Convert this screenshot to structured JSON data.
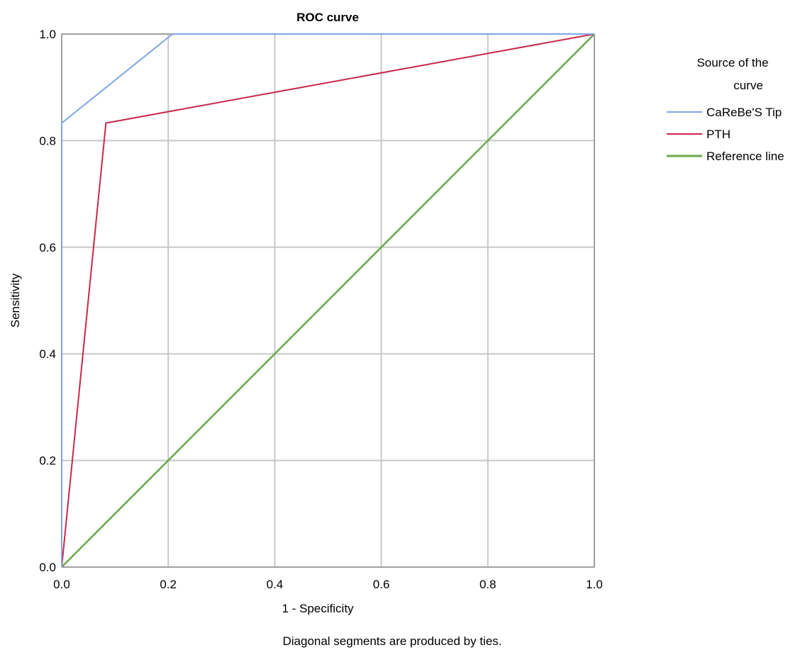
{
  "chart_data": {
    "type": "line",
    "title": "ROC curve",
    "xlabel": "1 - Specificity",
    "ylabel": "Sensitivity",
    "xlim": [
      0,
      1
    ],
    "ylim": [
      0,
      1
    ],
    "xticks": [
      "0.0",
      "0.2",
      "0.4",
      "0.6",
      "0.8",
      "1.0"
    ],
    "yticks": [
      "0.0",
      "0.2",
      "0.4",
      "0.6",
      "0.8",
      "1.0"
    ],
    "grid": true,
    "legend": {
      "title_line1": "Source of the",
      "title_line2": "curve",
      "placement": "right"
    },
    "series": [
      {
        "name": "CaReBe'S Tip",
        "color": "#7ea6e6",
        "x": [
          0.0,
          0.0,
          0.208,
          1.0
        ],
        "y": [
          0.0,
          0.833,
          1.0,
          1.0
        ]
      },
      {
        "name": "PTH",
        "color": "#c8284c",
        "x": [
          0.0,
          0.083,
          1.0
        ],
        "y": [
          0.0,
          0.833,
          1.0
        ]
      },
      {
        "name": "Reference line",
        "color": "#6aa84f",
        "x": [
          0.0,
          1.0
        ],
        "y": [
          0.0,
          1.0
        ]
      }
    ],
    "footnote": "Diagonal segments are produced by ties."
  }
}
